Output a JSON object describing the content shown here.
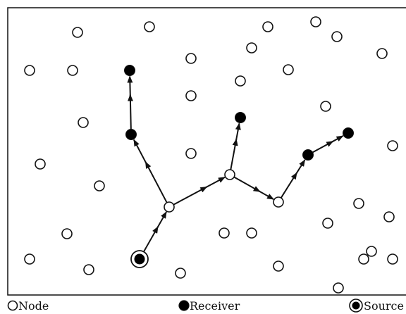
{
  "legend": {
    "node_label": "Node",
    "receiver_label": "Receiver",
    "source_label": "Source"
  },
  "colors": {
    "stroke": "#111111",
    "fill_receiver": "#000000",
    "fill_node": "#ffffff",
    "background": "#ffffff"
  }
}
